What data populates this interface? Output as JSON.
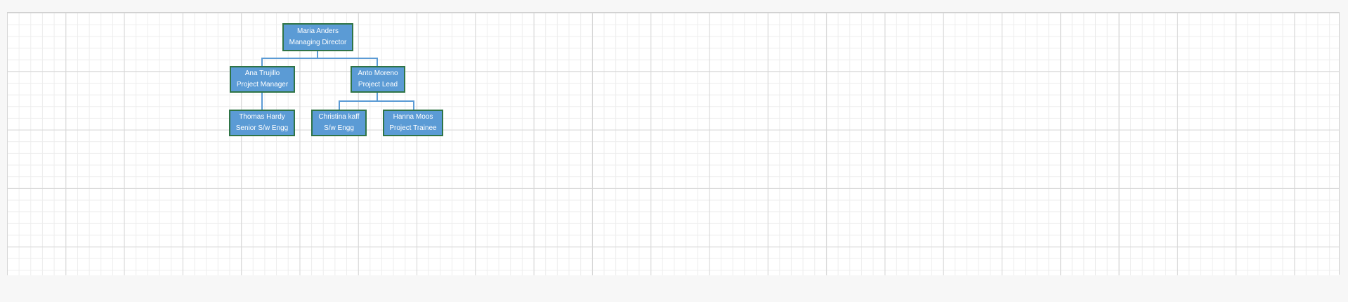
{
  "org_chart": {
    "nodes": [
      {
        "id": "maria",
        "name": "Maria Anders",
        "title": "Managing Director"
      },
      {
        "id": "ana",
        "name": "Ana Trujillo",
        "title": "Project Manager"
      },
      {
        "id": "anto",
        "name": "Anto Moreno",
        "title": "Project Lead"
      },
      {
        "id": "thomas",
        "name": "Thomas Hardy",
        "title": "Senior S/w Engg"
      },
      {
        "id": "christina",
        "name": "Christina kaff",
        "title": "S/w Engg"
      },
      {
        "id": "hanna",
        "name": "Hanna Moos",
        "title": "Project Trainee"
      }
    ],
    "links": [
      {
        "from": "maria",
        "to": "ana"
      },
      {
        "from": "maria",
        "to": "anto"
      },
      {
        "from": "ana",
        "to": "thomas"
      },
      {
        "from": "anto",
        "to": "christina"
      },
      {
        "from": "anto",
        "to": "hanna"
      }
    ],
    "colors": {
      "node_fill": "#5b9bd5",
      "node_border": "#2f7446",
      "node_text": "#ffffff",
      "connector": "#5b9bd5"
    }
  }
}
